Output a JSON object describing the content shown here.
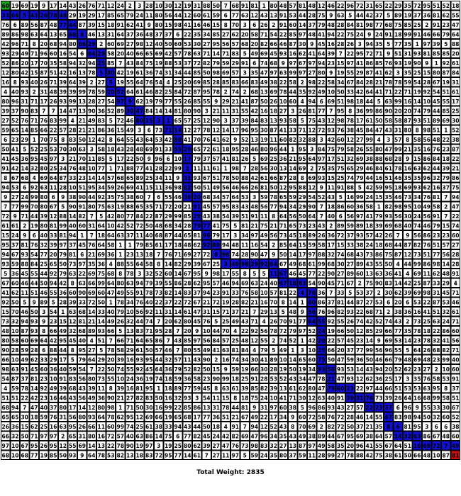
{
  "grid": {
    "rows": 48,
    "cols": 48,
    "colors": {
      "empty": "#ffffff",
      "path": "#1010d8",
      "start": "#1aa51a",
      "end": "#d01010"
    },
    "start_cell": [
      0,
      0
    ],
    "end_cell": [
      47,
      47
    ],
    "path_rows": [
      [
        0,
        0,
        0
      ],
      [
        1,
        0,
        6
      ],
      [
        2,
        6,
        7
      ],
      [
        3,
        7,
        8
      ],
      [
        4,
        8,
        9
      ],
      [
        5,
        9,
        10
      ],
      [
        6,
        10,
        10
      ],
      [
        7,
        10,
        11
      ],
      [
        8,
        11,
        11
      ],
      [
        9,
        11,
        12
      ],
      [
        10,
        12,
        13
      ],
      [
        11,
        13,
        14
      ],
      [
        12,
        14,
        17
      ],
      [
        13,
        17,
        18
      ],
      [
        14,
        18,
        18
      ],
      [
        15,
        18,
        19
      ],
      [
        16,
        19,
        19
      ],
      [
        17,
        19,
        19
      ],
      [
        18,
        19,
        19
      ],
      [
        19,
        19,
        19
      ],
      [
        20,
        19,
        20
      ],
      [
        21,
        20,
        20
      ],
      [
        22,
        20,
        20
      ],
      [
        23,
        20,
        21
      ],
      [
        24,
        21,
        21
      ],
      [
        25,
        21,
        22
      ],
      [
        26,
        22,
        23
      ],
      [
        27,
        23,
        28
      ],
      [
        28,
        28,
        29
      ],
      [
        29,
        29,
        31
      ],
      [
        30,
        31,
        32
      ],
      [
        31,
        32,
        32
      ],
      [
        32,
        32,
        32
      ],
      [
        33,
        32,
        33
      ],
      [
        34,
        33,
        33
      ],
      [
        35,
        33,
        33
      ],
      [
        36,
        33,
        33
      ],
      [
        37,
        33,
        33
      ],
      [
        38,
        33,
        34
      ],
      [
        39,
        34,
        34
      ],
      [
        40,
        34,
        36
      ],
      [
        41,
        36,
        38
      ],
      [
        42,
        38,
        40
      ],
      [
        43,
        40,
        40
      ],
      [
        44,
        40,
        41
      ],
      [
        45,
        41,
        43
      ],
      [
        46,
        43,
        47
      ],
      [
        47,
        47,
        47
      ]
    ],
    "seed": 2835
  },
  "footer": {
    "total_label": "Total Weight: 2835"
  }
}
